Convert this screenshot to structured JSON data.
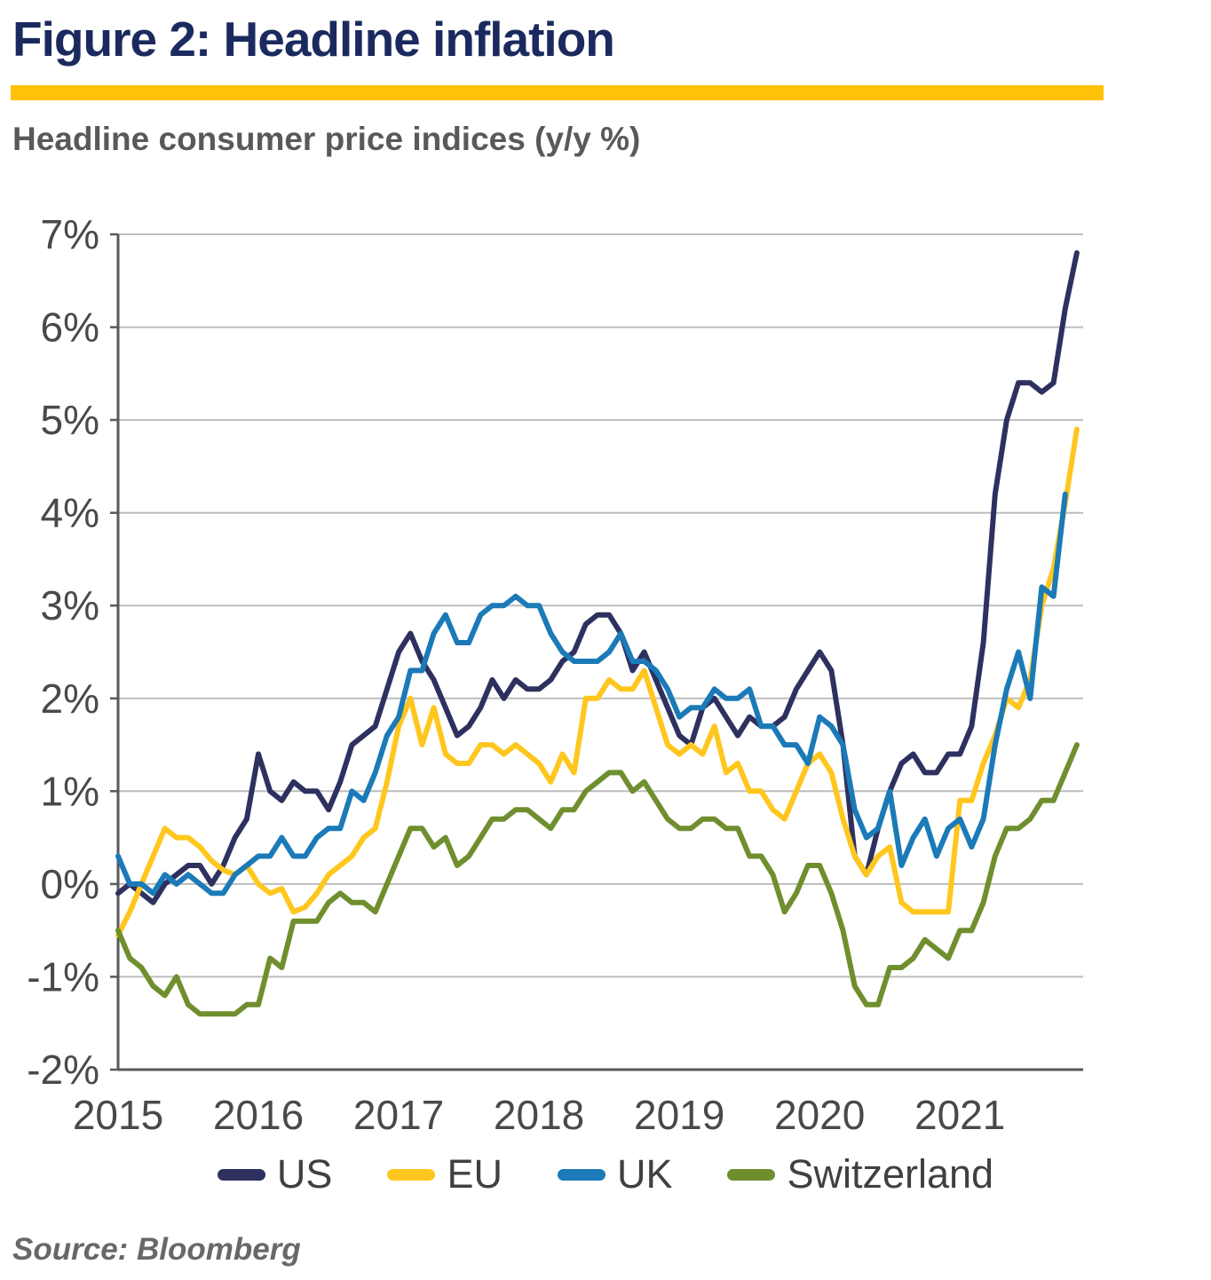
{
  "header": {
    "title": "Figure 2: Headline inflation",
    "subtitle": "Headline consumer price indices (y/y %)"
  },
  "footer": {
    "source": "Source: Bloomberg"
  },
  "colors": {
    "title": "#1B2A5E",
    "accent_rule": "#FFC208",
    "subtitle": "#595959",
    "gridline": "#BDBDBD",
    "axis_line": "#58595B",
    "tick_text": "#48494B",
    "legend_text": "#3F4042",
    "background": "#FFFFFF"
  },
  "chart_data": {
    "type": "line",
    "title": "Headline inflation",
    "subtitle": "Headline consumer price indices (y/y %)",
    "xlabel": "",
    "ylabel": "y/y %",
    "x_unit": "month",
    "x_range": "Jan 2015 - Nov 2021 (UK series ends Oct 2021)",
    "x_ticks": [
      "2015",
      "2016",
      "2017",
      "2018",
      "2019",
      "2020",
      "2021"
    ],
    "x_tick_month_interval": 12,
    "y_ticks": [
      "7%",
      "6%",
      "5%",
      "4%",
      "3%",
      "2%",
      "1%",
      "0%",
      "-1%",
      "-2%"
    ],
    "ylim": [
      -2,
      7
    ],
    "grid": true,
    "legend_position": "bottom",
    "series": [
      {
        "name": "US",
        "color": "#2E315F",
        "values": [
          -0.1,
          0.0,
          -0.1,
          -0.2,
          0.0,
          0.1,
          0.2,
          0.2,
          0.0,
          0.2,
          0.5,
          0.7,
          1.4,
          1.0,
          0.9,
          1.1,
          1.0,
          1.0,
          0.8,
          1.1,
          1.5,
          1.6,
          1.7,
          2.1,
          2.5,
          2.7,
          2.4,
          2.2,
          1.9,
          1.6,
          1.7,
          1.9,
          2.2,
          2.0,
          2.2,
          2.1,
          2.1,
          2.2,
          2.4,
          2.5,
          2.8,
          2.9,
          2.9,
          2.7,
          2.3,
          2.5,
          2.2,
          1.9,
          1.6,
          1.5,
          1.9,
          2.0,
          1.8,
          1.6,
          1.8,
          1.7,
          1.7,
          1.8,
          2.1,
          2.3,
          2.5,
          2.3,
          1.5,
          0.3,
          0.1,
          0.6,
          1.0,
          1.3,
          1.4,
          1.2,
          1.2,
          1.4,
          1.4,
          1.7,
          2.6,
          4.2,
          5.0,
          5.4,
          5.4,
          5.3,
          5.4,
          6.2,
          6.8
        ]
      },
      {
        "name": "EU",
        "color": "#FFC61E",
        "values": [
          -0.55,
          -0.3,
          0.0,
          0.3,
          0.6,
          0.5,
          0.5,
          0.4,
          0.25,
          0.15,
          0.1,
          0.2,
          0.0,
          -0.1,
          -0.05,
          -0.3,
          -0.25,
          -0.1,
          0.1,
          0.2,
          0.3,
          0.5,
          0.6,
          1.1,
          1.7,
          2.0,
          1.5,
          1.9,
          1.4,
          1.3,
          1.3,
          1.5,
          1.5,
          1.4,
          1.5,
          1.4,
          1.3,
          1.1,
          1.4,
          1.2,
          2.0,
          2.0,
          2.2,
          2.1,
          2.1,
          2.3,
          1.9,
          1.5,
          1.4,
          1.5,
          1.4,
          1.7,
          1.2,
          1.3,
          1.0,
          1.0,
          0.8,
          0.7,
          1.0,
          1.3,
          1.4,
          1.2,
          0.7,
          0.3,
          0.1,
          0.3,
          0.4,
          -0.2,
          -0.3,
          -0.3,
          -0.3,
          -0.3,
          0.9,
          0.9,
          1.3,
          1.6,
          2.0,
          1.9,
          2.2,
          3.0,
          3.4,
          4.1,
          4.9
        ]
      },
      {
        "name": "UK",
        "color": "#1B7AB7",
        "values": [
          0.3,
          0.0,
          0.0,
          -0.1,
          0.1,
          0.0,
          0.1,
          0.0,
          -0.1,
          -0.1,
          0.1,
          0.2,
          0.3,
          0.3,
          0.5,
          0.3,
          0.3,
          0.5,
          0.6,
          0.6,
          1.0,
          0.9,
          1.2,
          1.6,
          1.8,
          2.3,
          2.3,
          2.7,
          2.9,
          2.6,
          2.6,
          2.9,
          3.0,
          3.0,
          3.1,
          3.0,
          3.0,
          2.7,
          2.5,
          2.4,
          2.4,
          2.4,
          2.5,
          2.7,
          2.4,
          2.4,
          2.3,
          2.1,
          1.8,
          1.9,
          1.9,
          2.1,
          2.0,
          2.0,
          2.1,
          1.7,
          1.7,
          1.5,
          1.5,
          1.3,
          1.8,
          1.7,
          1.5,
          0.8,
          0.5,
          0.6,
          1.0,
          0.2,
          0.5,
          0.7,
          0.3,
          0.6,
          0.7,
          0.4,
          0.7,
          1.5,
          2.1,
          2.5,
          2.0,
          3.2,
          3.1,
          4.2
        ]
      },
      {
        "name": "Switzerland",
        "color": "#6F8F2F",
        "values": [
          -0.5,
          -0.8,
          -0.9,
          -1.1,
          -1.2,
          -1.0,
          -1.3,
          -1.4,
          -1.4,
          -1.4,
          -1.4,
          -1.3,
          -1.3,
          -0.8,
          -0.9,
          -0.4,
          -0.4,
          -0.4,
          -0.2,
          -0.1,
          -0.2,
          -0.2,
          -0.3,
          0.0,
          0.3,
          0.6,
          0.6,
          0.4,
          0.5,
          0.2,
          0.3,
          0.5,
          0.7,
          0.7,
          0.8,
          0.8,
          0.7,
          0.6,
          0.8,
          0.8,
          1.0,
          1.1,
          1.2,
          1.2,
          1.0,
          1.1,
          0.9,
          0.7,
          0.6,
          0.6,
          0.7,
          0.7,
          0.6,
          0.6,
          0.3,
          0.3,
          0.1,
          -0.3,
          -0.1,
          0.2,
          0.2,
          -0.1,
          -0.5,
          -1.1,
          -1.3,
          -1.3,
          -0.9,
          -0.9,
          -0.8,
          -0.6,
          -0.7,
          -0.8,
          -0.5,
          -0.5,
          -0.2,
          0.3,
          0.6,
          0.6,
          0.7,
          0.9,
          0.9,
          1.2,
          1.5
        ]
      }
    ]
  }
}
